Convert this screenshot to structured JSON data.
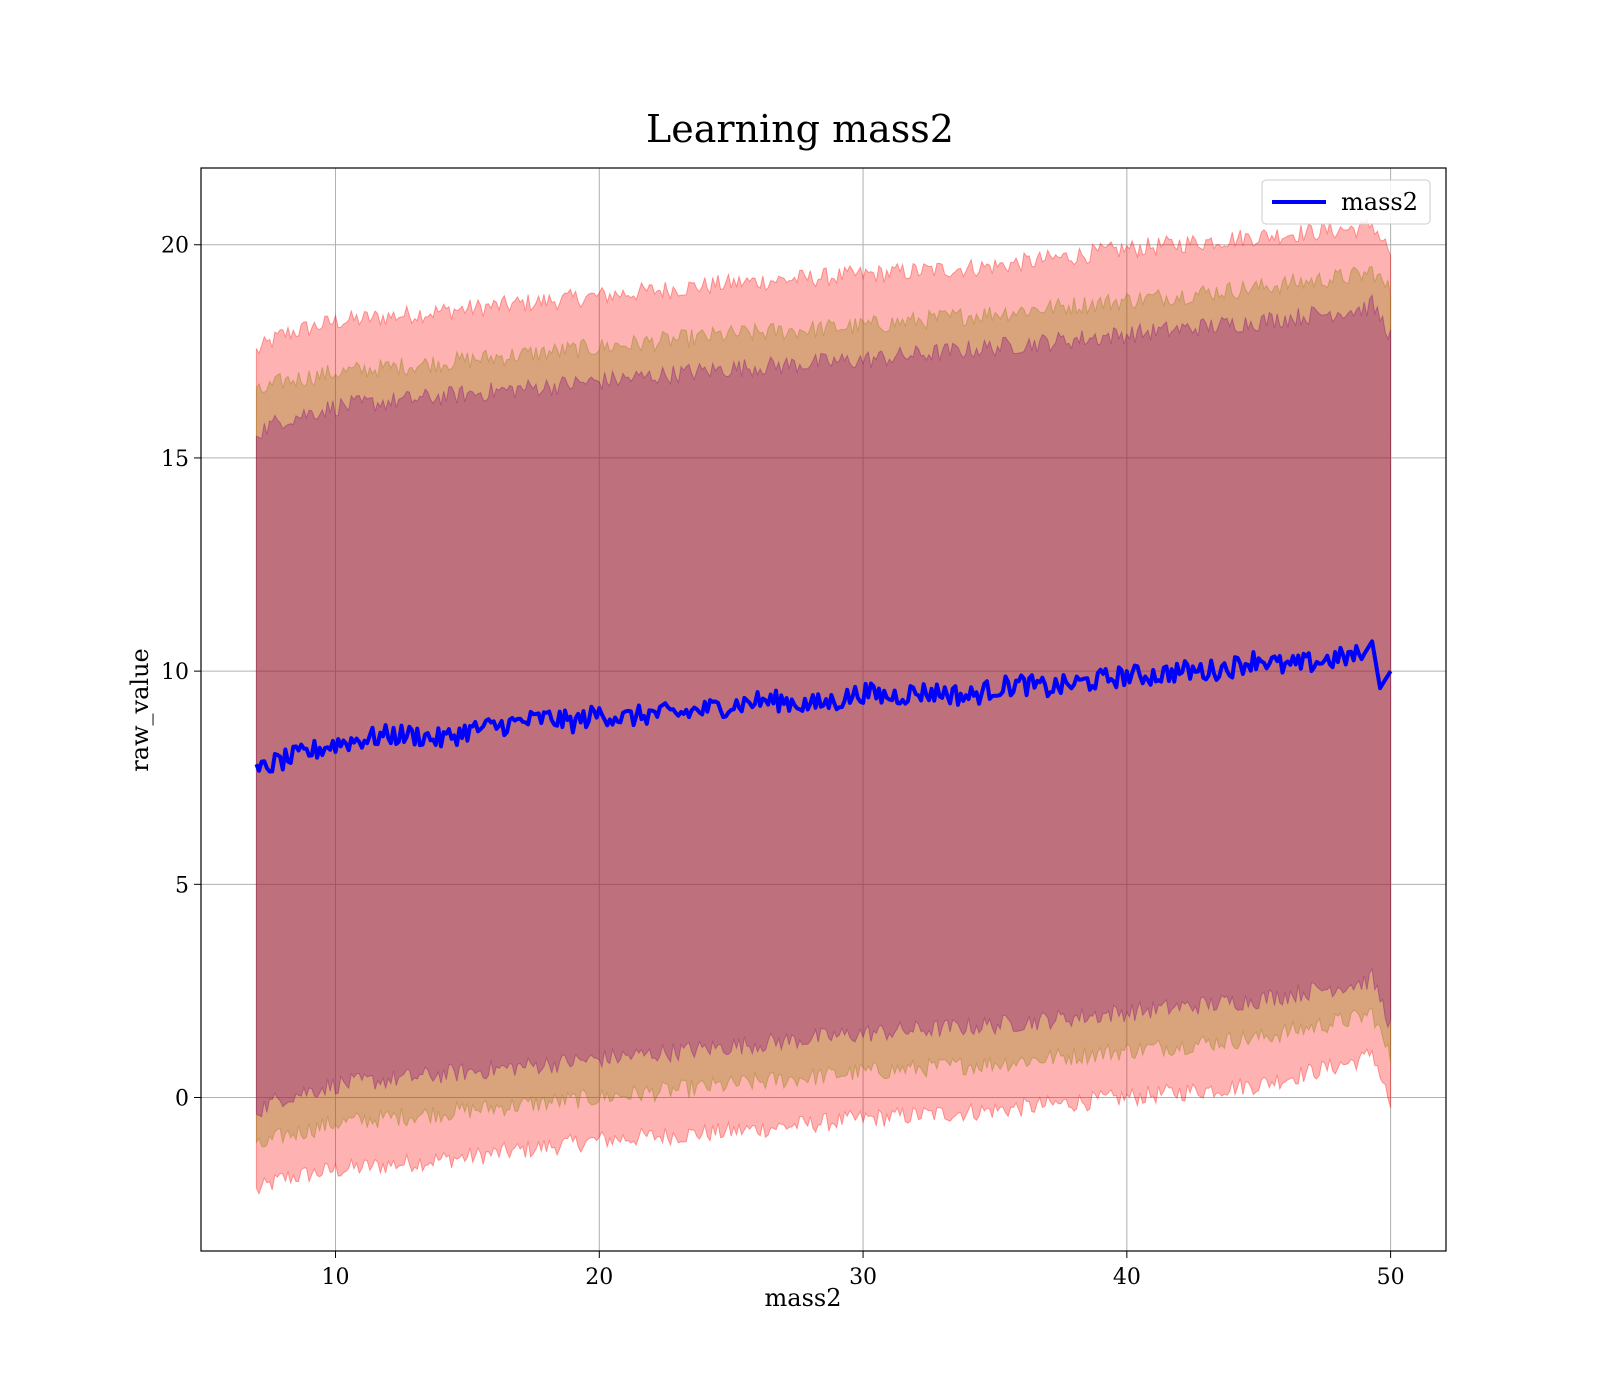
{
  "chart_data": {
    "type": "line",
    "title": "Learning mass2",
    "xlabel": "mass2",
    "ylabel": "raw_value",
    "xlim": [
      4.9,
      52.1
    ],
    "ylim": [
      -3.6,
      21.8
    ],
    "xticks": [
      10,
      20,
      30,
      40,
      50
    ],
    "yticks": [
      0,
      5,
      10,
      15,
      20
    ],
    "grid": true,
    "legend_position": "upper right",
    "series": [
      {
        "name": "mass2",
        "color": "#0000ff",
        "x": [
          7.0,
          7.5,
          8.0,
          9.0,
          10.0,
          11.0,
          12.0,
          13.0,
          14.0,
          15.0,
          16.0,
          17.0,
          18.0,
          19.0,
          20.0,
          21.0,
          22.0,
          23.0,
          24.0,
          25.0,
          26.0,
          27.0,
          28.0,
          29.0,
          30.0,
          31.0,
          32.0,
          33.0,
          34.0,
          35.0,
          36.0,
          37.0,
          38.0,
          39.0,
          40.0,
          41.0,
          42.0,
          43.0,
          44.0,
          45.0,
          46.0,
          47.0,
          48.0,
          49.0,
          49.3,
          49.6,
          50.0
        ],
        "y": [
          7.6,
          7.8,
          7.9,
          8.1,
          8.3,
          8.4,
          8.5,
          8.5,
          8.4,
          8.6,
          8.7,
          8.8,
          8.9,
          8.8,
          9.0,
          8.9,
          9.0,
          9.0,
          9.1,
          9.2,
          9.3,
          9.3,
          9.2,
          9.3,
          9.5,
          9.4,
          9.5,
          9.5,
          9.4,
          9.6,
          9.7,
          9.6,
          9.7,
          9.8,
          9.9,
          9.9,
          10.0,
          10.0,
          10.1,
          10.3,
          10.1,
          10.2,
          10.3,
          10.4,
          10.7,
          9.6,
          10.0
        ]
      }
    ],
    "bands": [
      {
        "color": "#ff0000",
        "opacity": 0.3,
        "x": [
          7.0,
          8.0,
          10.0,
          15.0,
          20.0,
          25.0,
          30.0,
          35.0,
          40.0,
          45.0,
          49.0,
          49.3,
          50.0
        ],
        "upper": [
          17.5,
          17.9,
          18.2,
          18.5,
          18.8,
          19.1,
          19.3,
          19.5,
          19.9,
          20.2,
          20.4,
          20.5,
          19.8
        ],
        "lower": [
          -2.2,
          -1.9,
          -1.7,
          -1.4,
          -1.0,
          -0.8,
          -0.5,
          -0.3,
          0.0,
          0.3,
          0.9,
          1.1,
          -0.2
        ]
      },
      {
        "color": "#808000",
        "opacity": 0.3,
        "x": [
          7.0,
          8.0,
          10.0,
          15.0,
          20.0,
          25.0,
          30.0,
          35.0,
          40.0,
          45.0,
          49.0,
          49.3,
          50.0
        ],
        "upper": [
          16.5,
          16.8,
          17.0,
          17.3,
          17.6,
          17.9,
          18.1,
          18.4,
          18.7,
          19.0,
          19.3,
          19.4,
          18.9
        ],
        "lower": [
          -1.2,
          -0.9,
          -0.6,
          -0.3,
          0.0,
          0.3,
          0.6,
          0.8,
          1.1,
          1.4,
          1.9,
          2.0,
          0.9
        ]
      },
      {
        "color": "#800080",
        "opacity": 0.3,
        "x": [
          7.0,
          8.0,
          10.0,
          15.0,
          20.0,
          25.0,
          30.0,
          35.0,
          40.0,
          45.0,
          49.0,
          49.3,
          50.0
        ],
        "upper": [
          15.6,
          15.9,
          16.2,
          16.5,
          16.8,
          17.1,
          17.3,
          17.6,
          17.9,
          18.2,
          18.5,
          18.6,
          17.9
        ],
        "lower": [
          -0.3,
          0.0,
          0.3,
          0.6,
          0.9,
          1.2,
          1.5,
          1.7,
          2.0,
          2.3,
          2.7,
          2.8,
          1.7
        ]
      }
    ]
  }
}
